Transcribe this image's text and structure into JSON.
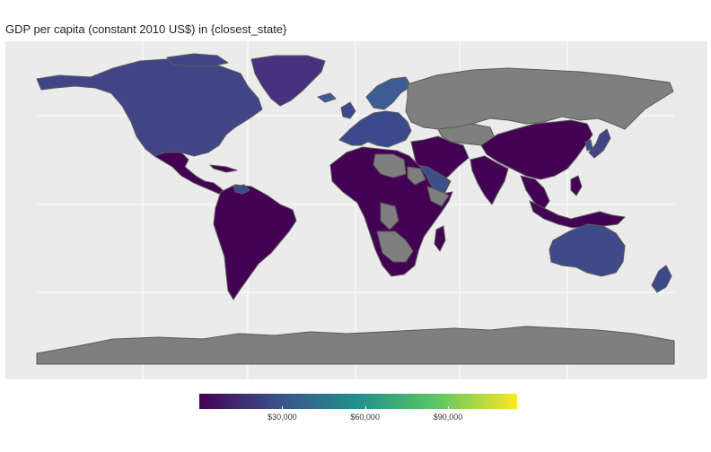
{
  "title": "GDP per capita (constant 2010 US$) in {closest_state}",
  "map": {
    "land_no_data_color": "#7f7f7f",
    "border_color": "#5a5a5a",
    "panel_color": "#ebebeb",
    "grid_color": "#ffffff"
  },
  "legend": {
    "palette": [
      "#440154",
      "#3b528b",
      "#21908c",
      "#5dc863",
      "#fde725"
    ],
    "ticks": [
      {
        "label": "$30,000",
        "value": 30000
      },
      {
        "label": "$60,000",
        "value": 60000
      },
      {
        "label": "$90,000",
        "value": 90000
      }
    ],
    "range": [
      0,
      115000
    ]
  },
  "colors": {
    "north_america": "#414487",
    "greenland": "#46327e",
    "latin_america": "#440154",
    "south_america": "#440154",
    "europe": "#3b4a8c",
    "scandinavia": "#3e5c94",
    "africa": "#440154",
    "middle_east_rich": "#3c4f8a",
    "asia": "#440154",
    "australia": "#3e4a89",
    "new_zealand": "#3b4a89"
  }
}
